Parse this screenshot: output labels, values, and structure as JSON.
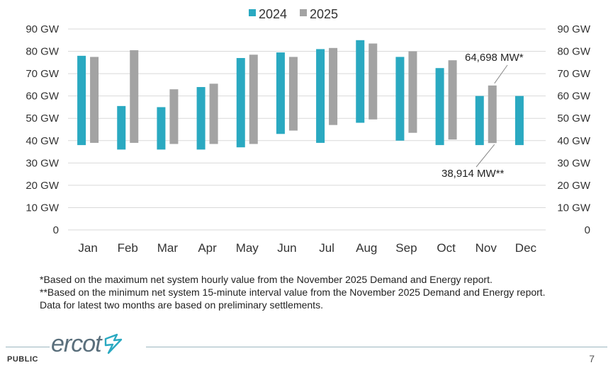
{
  "chart_data": {
    "type": "bar",
    "subtype": "floating-range",
    "categories": [
      "Jan",
      "Feb",
      "Mar",
      "Apr",
      "May",
      "Jun",
      "Jul",
      "Aug",
      "Sep",
      "Oct",
      "Nov",
      "Dec"
    ],
    "series": [
      {
        "name": "2024",
        "color": "#2aa9c1",
        "low": [
          38,
          36,
          36,
          36,
          37,
          43,
          39,
          48,
          40,
          38,
          38,
          38
        ],
        "high": [
          78,
          55.5,
          55,
          64,
          77,
          79.5,
          81,
          85,
          77.5,
          72.5,
          60,
          60
        ]
      },
      {
        "name": "2025",
        "color": "#a3a3a3",
        "low": [
          39,
          39,
          38.5,
          38.5,
          38.5,
          44.5,
          47,
          49.5,
          43.5,
          40.5,
          38.914,
          null
        ],
        "high": [
          77.5,
          80.5,
          63,
          65.5,
          78.5,
          77.5,
          81.5,
          83.5,
          80,
          76,
          64.698,
          null
        ]
      }
    ],
    "ylim": [
      0,
      90
    ],
    "y_ticks": [
      "0",
      "10 GW",
      "20 GW",
      "30 GW",
      "40 GW",
      "50 GW",
      "60 GW",
      "70 GW",
      "80 GW",
      "90 GW"
    ],
    "annotations": [
      {
        "text": "64,698 MW*",
        "category": "Nov",
        "series": "2025",
        "value": 64.698
      },
      {
        "text": "38,914 MW**",
        "category": "Nov",
        "series": "2025",
        "value": 38.914
      }
    ],
    "legend_position": "top-center"
  },
  "notes": [
    "*Based on the maximum net system hourly value from the November 2025 Demand and Energy report.",
    "**Based on the minimum net system 15-minute interval value from the November 2025 Demand and Energy report.",
    "Data for latest two months are based on preliminary settlements."
  ],
  "footer": {
    "classification": "PUBLIC",
    "page": "7",
    "logo_text": "ercot"
  }
}
